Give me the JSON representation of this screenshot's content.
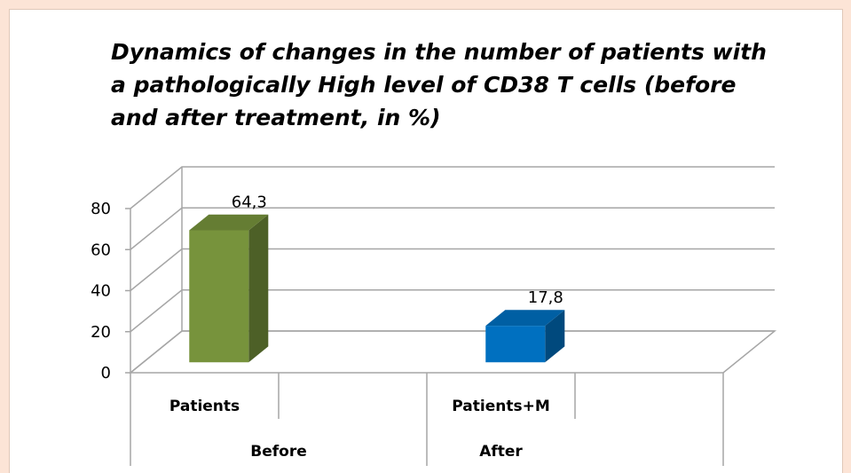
{
  "chart_data": {
    "type": "bar3d",
    "title": "Dynamics of changes in the number of patients with a pathologically High level of CD38 T cells (before and after treatment, in %)",
    "categories": [
      "Patients",
      "Patients+M"
    ],
    "group_labels": [
      "Before",
      "After"
    ],
    "values": [
      64.3,
      17.8
    ],
    "value_labels": [
      "64,3",
      "17,8"
    ],
    "colors": [
      "#77933c",
      "#0070c0"
    ],
    "ylim": [
      0,
      80
    ],
    "yticks": [
      0,
      20,
      40,
      60,
      80
    ],
    "grid": true
  }
}
